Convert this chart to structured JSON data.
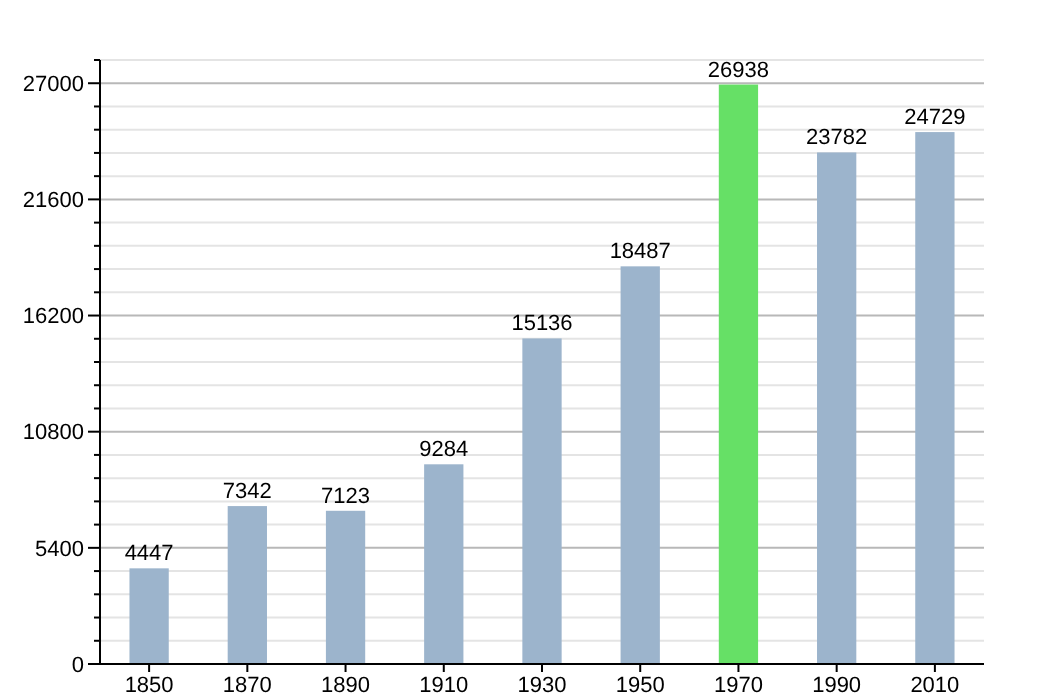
{
  "chart_data": {
    "type": "bar",
    "categories": [
      "1850",
      "1870",
      "1890",
      "1910",
      "1930",
      "1950",
      "1970",
      "1990",
      "2010"
    ],
    "values": [
      4447,
      7342,
      7123,
      9284,
      15136,
      18487,
      26938,
      23782,
      24729
    ],
    "colors": [
      "#9cb4cc",
      "#9cb4cc",
      "#9cb4cc",
      "#9cb4cc",
      "#9cb4cc",
      "#9cb4cc",
      "#66e066",
      "#9cb4cc",
      "#9cb4cc"
    ],
    "ylim": [
      0,
      28080
    ],
    "yticks": [
      0,
      {
        "value": 1080,
        "label": null
      },
      {
        "value": 2160,
        "label": null
      },
      {
        "value": 3240,
        "label": null
      },
      {
        "value": 4320,
        "label": null
      },
      5400,
      {
        "value": 6480,
        "label": null
      },
      {
        "value": 7560,
        "label": null
      },
      {
        "value": 8640,
        "label": null
      },
      {
        "value": 9720,
        "label": null
      },
      10800,
      {
        "value": 11880,
        "label": null
      },
      {
        "value": 12960,
        "label": null
      },
      {
        "value": 14040,
        "label": null
      },
      {
        "value": 15120,
        "label": null
      },
      16200,
      {
        "value": 17280,
        "label": null
      },
      {
        "value": 18360,
        "label": null
      },
      {
        "value": 19440,
        "label": null
      },
      {
        "value": 20520,
        "label": null
      },
      21600,
      {
        "value": 22680,
        "label": null
      },
      {
        "value": 23760,
        "label": null
      },
      {
        "value": 24840,
        "label": null
      },
      {
        "value": 25920,
        "label": null
      },
      27000,
      {
        "value": 28080,
        "label": null
      }
    ],
    "grid": true,
    "data_labels": true
  }
}
